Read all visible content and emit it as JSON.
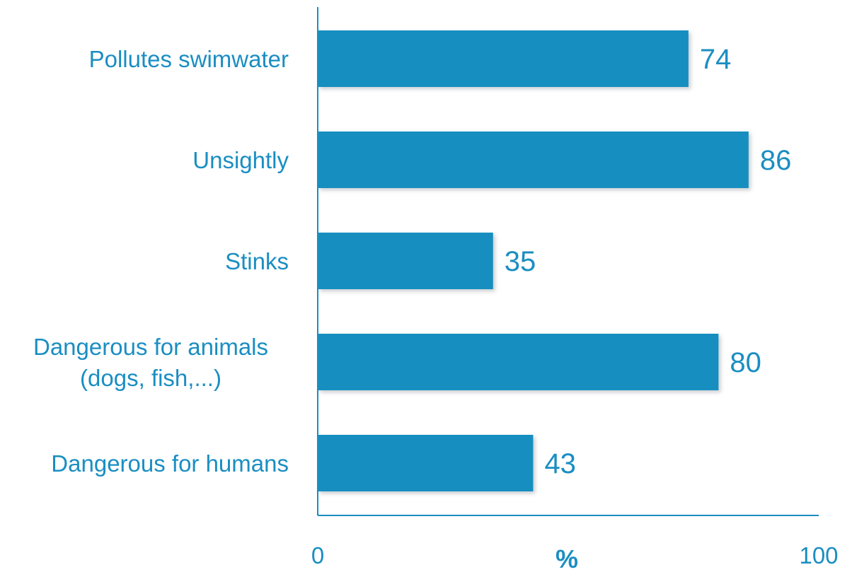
{
  "chart_data": {
    "type": "bar",
    "orientation": "horizontal",
    "categories": [
      [
        "Pollutes swimwater"
      ],
      [
        "Unsightly"
      ],
      [
        "Stinks"
      ],
      [
        "Dangerous for animals",
        "(dogs, fish,...)"
      ],
      [
        "Dangerous for humans"
      ]
    ],
    "values": [
      74,
      86,
      35,
      80,
      43
    ],
    "xlim": [
      0,
      100
    ],
    "xticks": [
      "0",
      "100"
    ],
    "xlabel": "%",
    "title": "",
    "ylabel": "",
    "grid": false,
    "legend": "none"
  },
  "colors": {
    "bar": "#138fc0",
    "bar_shadow": "#c8ccd2",
    "text": "#1a8ec2",
    "axis": "#1a8ec2"
  }
}
